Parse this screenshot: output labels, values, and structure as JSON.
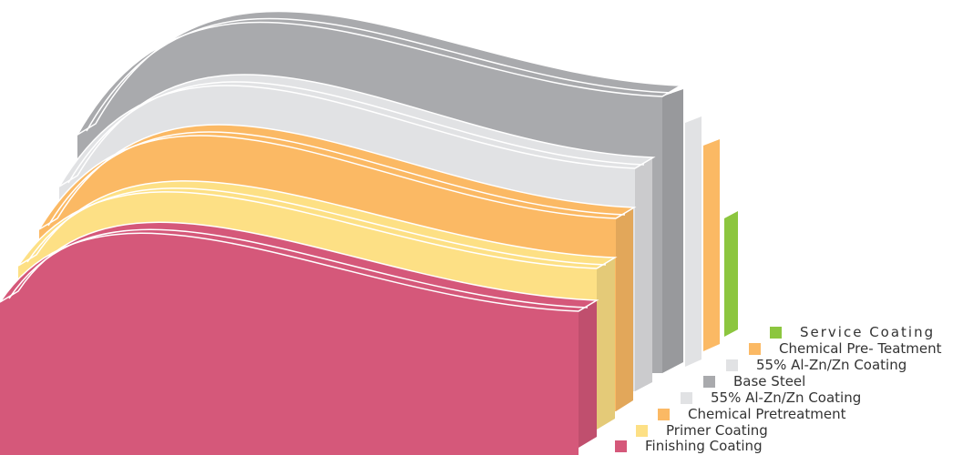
{
  "diagram": {
    "layers": [
      {
        "key": "service",
        "label": "Service Coating",
        "color": "#8cc63f"
      },
      {
        "key": "pretreat_back",
        "label": "Chemical Pre- Teatment",
        "color": "#fbb964"
      },
      {
        "key": "alzn_back",
        "label": "55% Al-Zn/Zn Coating",
        "color": "#e1e2e4"
      },
      {
        "key": "steel",
        "label": "Base Steel",
        "color": "#a9aaad"
      },
      {
        "key": "alzn_front",
        "label": "55% Al-Zn/Zn Coating",
        "color": "#e1e2e4"
      },
      {
        "key": "pretreat_front",
        "label": "Chemical Pretreatment",
        "color": "#fbb964"
      },
      {
        "key": "primer",
        "label": "Primer Coating",
        "color": "#fde085"
      },
      {
        "key": "finish",
        "label": "Finishing Coating",
        "color": "#d5587a"
      }
    ]
  }
}
